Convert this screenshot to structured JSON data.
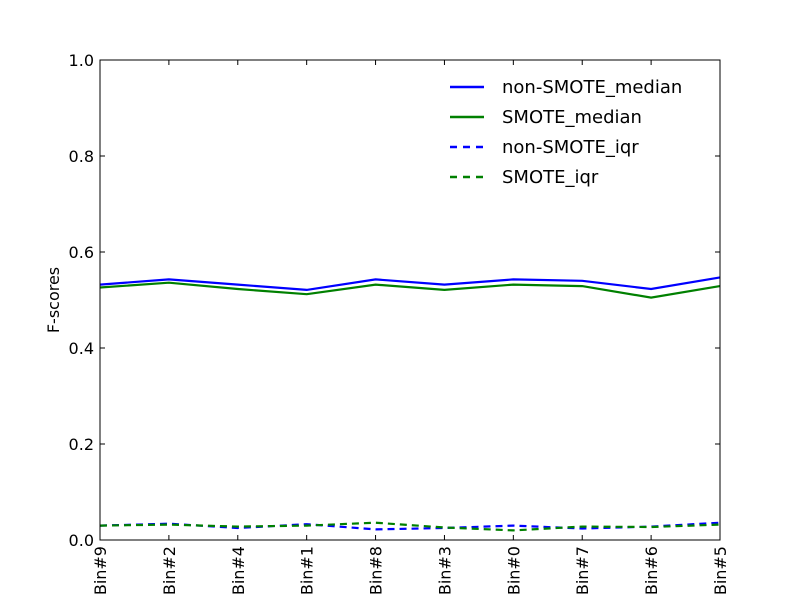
{
  "chart_data": {
    "type": "line",
    "title": "",
    "xlabel": "",
    "ylabel": "F-scores",
    "categories": [
      "Bin#9",
      "Bin#2",
      "Bin#4",
      "Bin#1",
      "Bin#8",
      "Bin#3",
      "Bin#0",
      "Bin#7",
      "Bin#6",
      "Bin#5"
    ],
    "ylim": [
      0.0,
      1.0
    ],
    "yticks": [
      "0.0",
      "0.2",
      "0.4",
      "0.6",
      "0.8",
      "1.0"
    ],
    "grid": false,
    "legend_position": "top-right",
    "series": [
      {
        "name": "non-SMOTE_median",
        "color": "#0000ff",
        "style": "solid",
        "values": [
          0.532,
          0.543,
          0.532,
          0.521,
          0.543,
          0.532,
          0.543,
          0.54,
          0.523,
          0.547
        ]
      },
      {
        "name": "SMOTE_median",
        "color": "#008000",
        "style": "solid",
        "values": [
          0.526,
          0.536,
          0.523,
          0.512,
          0.532,
          0.521,
          0.532,
          0.529,
          0.505,
          0.529
        ]
      },
      {
        "name": "non-SMOTE_iqr",
        "color": "#0000ff",
        "style": "dashed",
        "values": [
          0.03,
          0.034,
          0.025,
          0.033,
          0.022,
          0.025,
          0.03,
          0.024,
          0.028,
          0.036
        ]
      },
      {
        "name": "SMOTE_iqr",
        "color": "#008000",
        "style": "dashed",
        "values": [
          0.03,
          0.032,
          0.028,
          0.03,
          0.036,
          0.026,
          0.02,
          0.028,
          0.027,
          0.032
        ]
      }
    ]
  }
}
